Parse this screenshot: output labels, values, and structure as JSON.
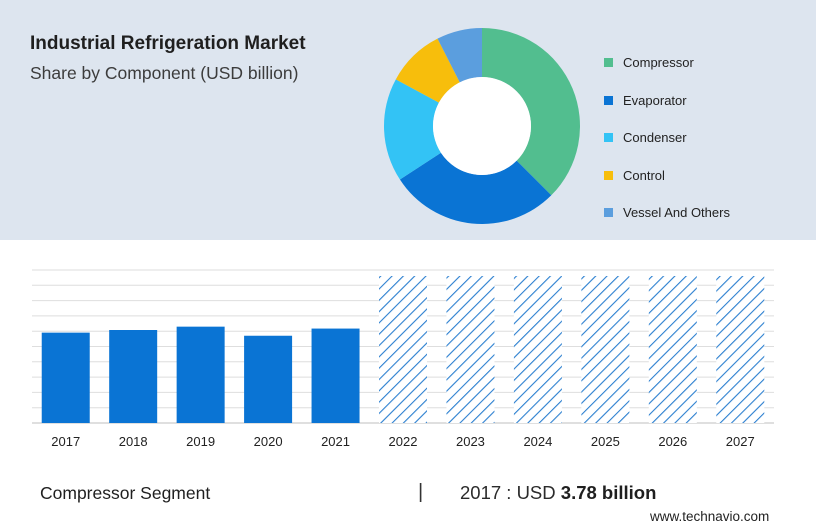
{
  "header": {
    "title": "Industrial Refrigeration Market",
    "subtitle": "Share by Component (USD billion)"
  },
  "colors": {
    "panel_bg": "#dde5ef",
    "bar_blue": "#0a74d4",
    "hatch_blue": "#2b7fd0"
  },
  "chart_data": [
    {
      "type": "pie",
      "subtype": "donut",
      "categories": [
        "Compressor",
        "Evaporator",
        "Condenser",
        "Control",
        "Vessel And Others"
      ],
      "values": [
        37.5,
        28.3,
        17.1,
        9.6,
        7.5
      ],
      "colors": [
        "#52be8f",
        "#0a74d4",
        "#33c3f5",
        "#f7be0c",
        "#5b9ede"
      ],
      "legend_position": "right"
    },
    {
      "type": "bar",
      "categories": [
        "2017",
        "2018",
        "2019",
        "2020",
        "2021",
        "2022",
        "2023",
        "2024",
        "2025",
        "2026",
        "2027"
      ],
      "series": [
        {
          "values": [
            3.78,
            3.89,
            4.03,
            3.65,
            3.95,
            null,
            null,
            null,
            null,
            null,
            null
          ]
        }
      ],
      "forecast_categories": [
        "2022",
        "2023",
        "2024",
        "2025",
        "2026",
        "2027"
      ],
      "forecast_style": "hatched",
      "grid": true,
      "ylim": [
        0,
        6.4
      ]
    }
  ],
  "footer": {
    "segment_label": "Compressor Segment",
    "separator": "|",
    "value_prefix": "2017 : USD",
    "value_bold": "3.78 billion",
    "source": "www.technavio.com"
  }
}
